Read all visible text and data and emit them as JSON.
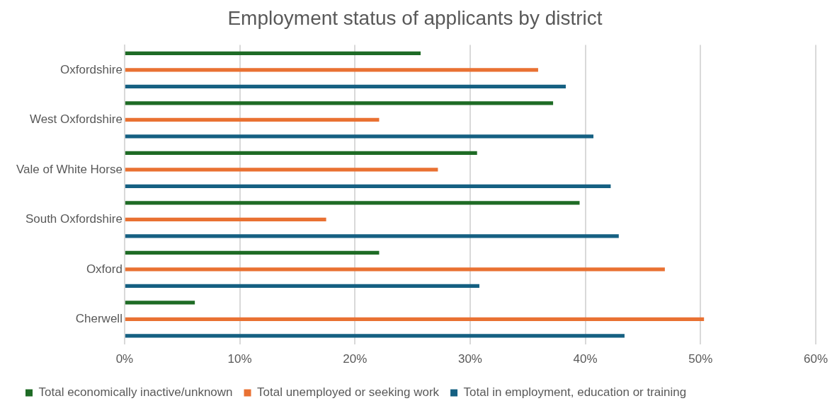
{
  "chart_data": {
    "type": "bar",
    "orientation": "horizontal",
    "title": "Employment status of applicants by district",
    "categories": [
      "Oxfordshire",
      "West Oxfordshire",
      "Vale of White Horse",
      "South Oxfordshire",
      "Oxford",
      "Cherwell"
    ],
    "series": [
      {
        "name": "Total economically inactive/unknown",
        "color": "#1e6b25",
        "values": [
          25.7,
          37.2,
          30.6,
          39.5,
          22.1,
          6.1
        ]
      },
      {
        "name": "Total unemployed or seeking work",
        "color": "#e97132",
        "values": [
          35.9,
          22.1,
          27.2,
          17.5,
          46.9,
          50.3
        ]
      },
      {
        "name": "Total in employment, education or training",
        "color": "#156082",
        "values": [
          38.3,
          40.7,
          42.2,
          42.9,
          30.8,
          43.4
        ]
      }
    ],
    "xlim": [
      0,
      60
    ],
    "xticks": [
      {
        "value": 0,
        "label": "0%"
      },
      {
        "value": 10,
        "label": "10%"
      },
      {
        "value": 20,
        "label": "20%"
      },
      {
        "value": 30,
        "label": "30%"
      },
      {
        "value": 40,
        "label": "40%"
      },
      {
        "value": 50,
        "label": "50%"
      },
      {
        "value": 60,
        "label": "60%"
      }
    ],
    "grid": "x",
    "legend": "bottom"
  }
}
